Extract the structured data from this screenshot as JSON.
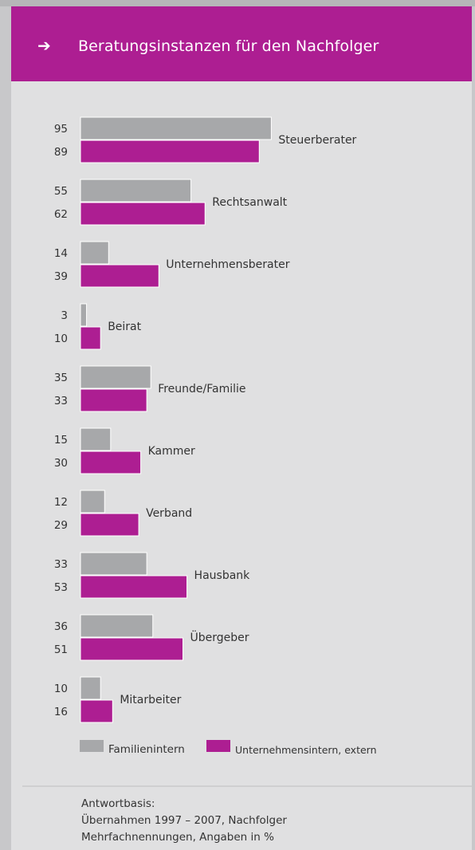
{
  "header": {
    "arrow_icon": "arrow-right-icon",
    "title": "Beratungsinstanzen für den Nachfolger"
  },
  "colors": {
    "familienintern": "#a7a8aa",
    "extern": "#ad1e92",
    "header": "#ad1e92"
  },
  "chart_data": {
    "type": "bar",
    "orientation": "horizontal",
    "title": "Beratungsinstanzen für den Nachfolger",
    "categories": [
      "Steuerberater",
      "Rechtsanwalt",
      "Unternehmensberater",
      "Beirat",
      "Freunde/Familie",
      "Kammer",
      "Verband",
      "Hausbank",
      "Übergeber",
      "Mitarbeiter"
    ],
    "series": [
      {
        "name": "Familienintern",
        "values": [
          95,
          55,
          14,
          3,
          35,
          15,
          12,
          33,
          36,
          10
        ]
      },
      {
        "name": "Unternehmensintern, extern",
        "values": [
          89,
          62,
          39,
          10,
          33,
          30,
          29,
          53,
          51,
          16
        ]
      }
    ],
    "xlim": [
      0,
      100
    ],
    "grid": false,
    "legend_position": "bottom"
  },
  "legend": {
    "familienintern": "Familienintern",
    "extern": "Unternehmensintern, extern"
  },
  "footnote": {
    "line1": "Antwortbasis:",
    "line2": "Übernahmen 1997 – 2007, Nachfolger",
    "line3": "Mehrfachnennungen, Angaben in %"
  }
}
